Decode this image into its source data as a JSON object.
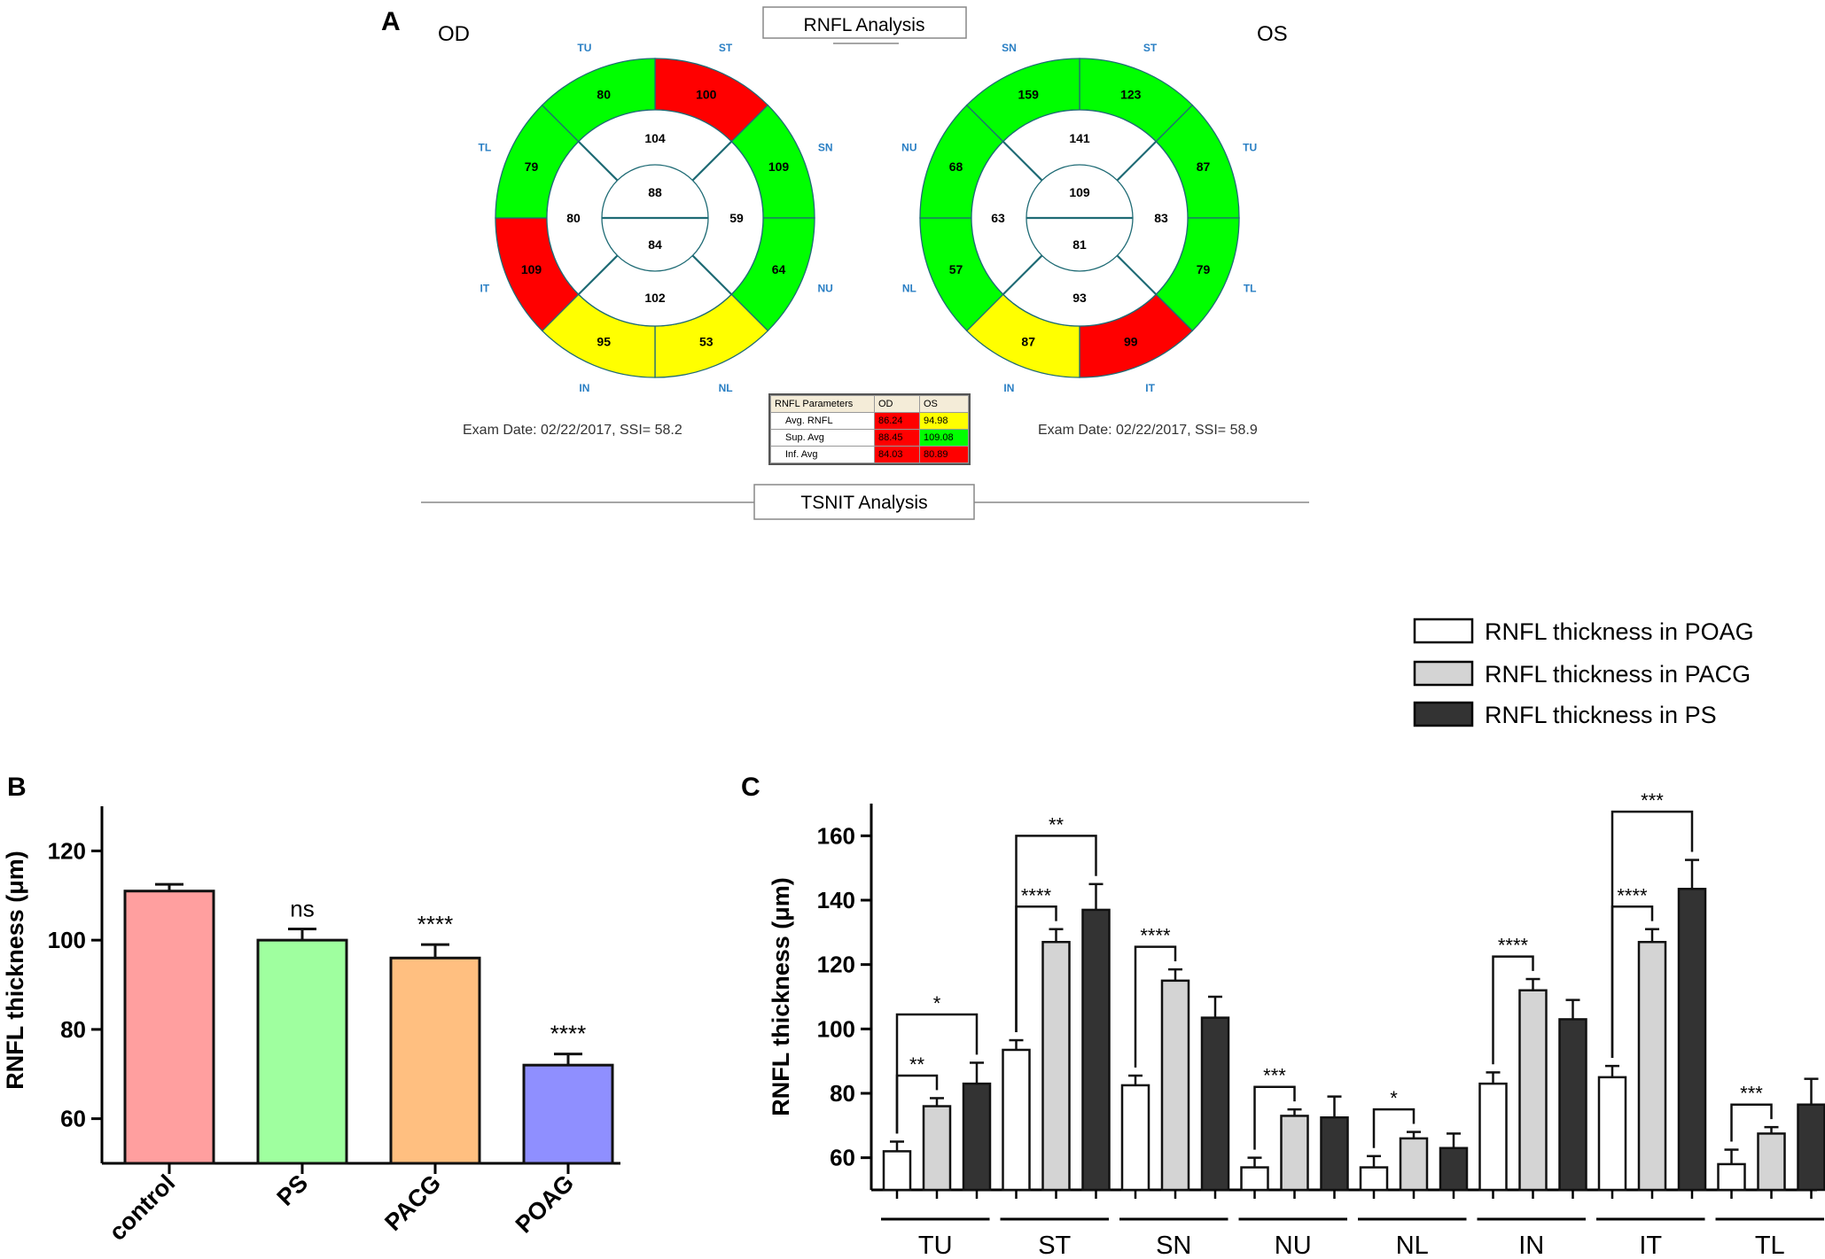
{
  "panel_labels": {
    "a": "A",
    "b": "B",
    "c": "C"
  },
  "panel_a": {
    "title": "RNFL Analysis",
    "footer_tab": "TSNIT Analysis",
    "colors": {
      "red": "#ff0000",
      "green": "#00ff00",
      "yellow": "#ffff00",
      "white": "#ffffff",
      "line": "#1f6b75",
      "label_blue": "#2a7fc4"
    },
    "od": {
      "label": "OD",
      "exam": "Exam Date: 02/22/2017, SSI= 58.2",
      "outer": [
        {
          "sector": "ST",
          "value": "100",
          "color": "red"
        },
        {
          "sector": "SN",
          "value": "109",
          "color": "green"
        },
        {
          "sector": "NU",
          "value": "64",
          "color": "green"
        },
        {
          "sector": "NL",
          "value": "53",
          "color": "yellow"
        },
        {
          "sector": "IN",
          "value": "95",
          "color": "yellow"
        },
        {
          "sector": "IT",
          "value": "109",
          "color": "red"
        },
        {
          "sector": "TL",
          "value": "79",
          "color": "green"
        },
        {
          "sector": "TU",
          "value": "80",
          "color": "green"
        }
      ],
      "mid": {
        "top": "104",
        "right": "59",
        "bottom": "102",
        "left": "80"
      },
      "inner": {
        "top": "88",
        "bottom": "84"
      }
    },
    "os": {
      "label": "OS",
      "exam": "Exam Date: 02/22/2017, SSI= 58.9",
      "outer": [
        {
          "sector": "ST",
          "value": "123",
          "color": "green"
        },
        {
          "sector": "TU",
          "value": "87",
          "color": "green"
        },
        {
          "sector": "TL",
          "value": "79",
          "color": "green"
        },
        {
          "sector": "IT",
          "value": "99",
          "color": "red"
        },
        {
          "sector": "IN",
          "value": "87",
          "color": "yellow"
        },
        {
          "sector": "NL",
          "value": "57",
          "color": "green"
        },
        {
          "sector": "NU",
          "value": "68",
          "color": "green"
        },
        {
          "sector": "SN",
          "value": "159",
          "color": "green"
        }
      ],
      "mid": {
        "top": "141",
        "right": "83",
        "bottom": "93",
        "left": "63"
      },
      "inner": {
        "top": "109",
        "bottom": "81"
      }
    },
    "table": {
      "headers": [
        "RNFL Parameters",
        "OD",
        "OS"
      ],
      "rows": [
        {
          "name": "Avg. RNFL",
          "od": "86.24",
          "od_color": "#ff0000",
          "os": "94.98",
          "os_color": "#ffff00"
        },
        {
          "name": "Sup. Avg",
          "od": "88.45",
          "od_color": "#ff0000",
          "os": "109.08",
          "os_color": "#00ff00"
        },
        {
          "name": "Inf. Avg",
          "od": "84.03",
          "od_color": "#ff0000",
          "os": "80.89",
          "os_color": "#ff0000"
        }
      ]
    }
  },
  "chart_data": [
    {
      "type": "bar",
      "panel": "B",
      "categories": [
        "control",
        "PS",
        "PACG",
        "POAG"
      ],
      "values": [
        111,
        100,
        96,
        72
      ],
      "errors": [
        1.5,
        2.5,
        3,
        2.5
      ],
      "colors": [
        "#ff9f9f",
        "#9fff9f",
        "#ffbf80",
        "#8f8fff"
      ],
      "significance": [
        "",
        "ns",
        "****",
        "****"
      ],
      "ylabel": "RNFL thickness (μm)",
      "ylim": [
        50,
        130
      ],
      "yticks": [
        60,
        80,
        100,
        120
      ]
    },
    {
      "type": "bar",
      "panel": "C",
      "categories": [
        "TU",
        "ST",
        "SN",
        "NU",
        "NL",
        "IN",
        "IT",
        "TL"
      ],
      "series": [
        {
          "name": "RNFL thickness in POAG",
          "color": "#ffffff",
          "values": [
            62,
            93.5,
            82.5,
            57,
            57,
            83,
            85,
            58
          ],
          "errors": [
            3,
            3,
            3,
            3,
            3.5,
            3.5,
            3.5,
            4.5
          ]
        },
        {
          "name": "RNFL thickness in PACG",
          "color": "#d4d4d4",
          "values": [
            76,
            127,
            115,
            73,
            66,
            112,
            127,
            67.5
          ],
          "errors": [
            2.5,
            4,
            3.5,
            2,
            2,
            3.5,
            4,
            2
          ]
        },
        {
          "name": "RNFL thickness in PS",
          "color": "#333333",
          "values": [
            83,
            137,
            103.5,
            72.5,
            63,
            103,
            143.5,
            76.5
          ],
          "errors": [
            6.5,
            8,
            6.5,
            6.5,
            4.5,
            6,
            9,
            8
          ]
        }
      ],
      "annotations": [
        {
          "group": 0,
          "from": 0,
          "to": 1,
          "text": "**"
        },
        {
          "group": 0,
          "from": 0,
          "to": 2,
          "text": "*"
        },
        {
          "group": 1,
          "from": 0,
          "to": 1,
          "text": "****"
        },
        {
          "group": 1,
          "from": 0,
          "to": 2,
          "text": "**"
        },
        {
          "group": 2,
          "from": 0,
          "to": 1,
          "text": "****"
        },
        {
          "group": 3,
          "from": 0,
          "to": 1,
          "text": "***"
        },
        {
          "group": 4,
          "from": 0,
          "to": 1,
          "text": "*"
        },
        {
          "group": 5,
          "from": 0,
          "to": 1,
          "text": "****"
        },
        {
          "group": 6,
          "from": 0,
          "to": 1,
          "text": "****"
        },
        {
          "group": 6,
          "from": 0,
          "to": 2,
          "text": "***"
        },
        {
          "group": 7,
          "from": 0,
          "to": 1,
          "text": "***"
        }
      ],
      "ylabel": "RNFL thickness (μm)",
      "ylim": [
        50,
        170
      ],
      "yticks": [
        60,
        80,
        100,
        120,
        140,
        160
      ]
    }
  ]
}
